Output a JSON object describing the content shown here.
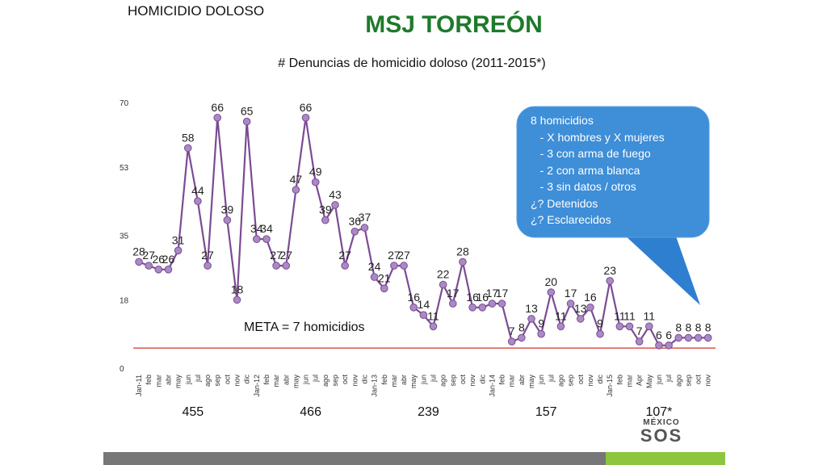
{
  "header": {
    "section": "HOMICIDIO DOLOSO",
    "title": "MSJ TORREÓN"
  },
  "chart_data": {
    "type": "line",
    "title": "# Denuncias de homicidio doloso (2011-2015*)",
    "xlabel": "",
    "ylabel": "",
    "ylim": [
      0,
      70
    ],
    "yticks": [
      0,
      18,
      35,
      53,
      70
    ],
    "categories": [
      "Jan-11",
      "feb",
      "mar",
      "abr",
      "may",
      "jun",
      "jul",
      "ago",
      "sep",
      "oct",
      "nov",
      "dic",
      "Jan-12",
      "feb",
      "mar",
      "abr",
      "may",
      "jun",
      "jul",
      "ago",
      "sep",
      "oct",
      "nov",
      "dic",
      "Jan-13",
      "feb",
      "mar",
      "abr",
      "may",
      "jun",
      "jul",
      "ago",
      "sep",
      "oct",
      "nov",
      "dic",
      "Jan-14",
      "feb",
      "mar",
      "abr",
      "may",
      "jun",
      "jul",
      "ago",
      "sep",
      "oct",
      "nov",
      "dic",
      "Jan-15",
      "feb",
      "mar",
      "Apr",
      "May",
      "jun",
      "jul",
      "ago",
      "sep",
      "oct",
      "nov"
    ],
    "values": [
      28,
      27,
      26,
      26,
      31,
      58,
      44,
      27,
      66,
      39,
      18,
      65,
      34,
      34,
      27,
      27,
      47,
      66,
      49,
      39,
      43,
      27,
      36,
      37,
      24,
      21,
      27,
      27,
      16,
      14,
      11,
      22,
      17,
      28,
      16,
      16,
      17,
      17,
      7,
      8,
      13,
      9,
      20,
      11,
      17,
      13,
      16,
      9,
      23,
      11,
      11,
      7,
      11,
      6,
      6,
      8,
      8,
      8,
      8
    ],
    "goal": {
      "value": 7,
      "label": "META = 7 homicidios",
      "color": "#d9302a"
    },
    "line_color": "#7b4b94",
    "marker_color": "#a98ac4",
    "yearly_totals": [
      {
        "label": "455",
        "start": 0,
        "end": 11
      },
      {
        "label": "466",
        "start": 12,
        "end": 23
      },
      {
        "label": "239",
        "start": 24,
        "end": 35
      },
      {
        "label": "157",
        "start": 36,
        "end": 47
      },
      {
        "label": "107*",
        "start": 48,
        "end": 58
      }
    ]
  },
  "callout": {
    "color": "#3e8ed8",
    "lines": [
      "8 homicidios",
      "   - X hombres y X mujeres",
      "   - 3 con arma de fuego",
      "   - 2 con arma blanca",
      "   - 3 sin datos / otros",
      "¿? Detenidos",
      "¿? Esclarecidos"
    ]
  },
  "logo": {
    "top": "MÉXICO",
    "main": "SOS"
  }
}
